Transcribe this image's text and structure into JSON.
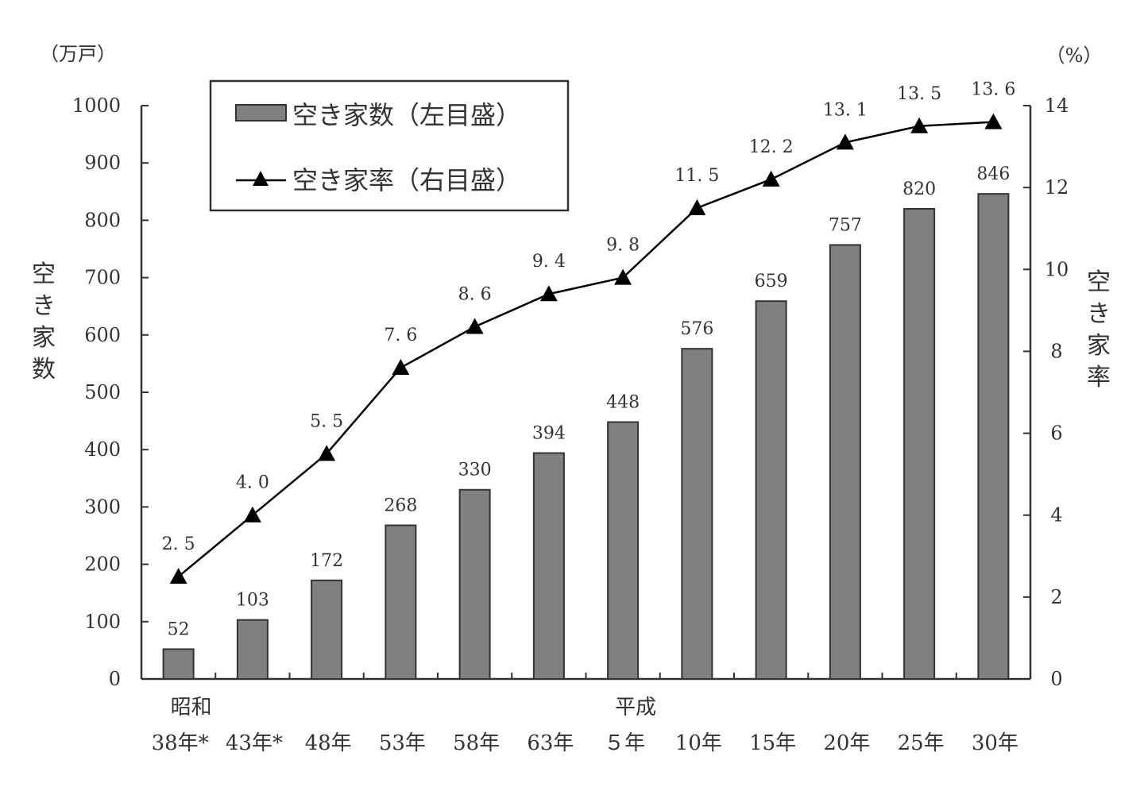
{
  "chart_data": {
    "type": "bar",
    "categories": [
      "38年*",
      "43年*",
      "48年",
      "53年",
      "58年",
      "63年",
      "５年",
      "10年",
      "15年",
      "20年",
      "25年",
      "30年"
    ],
    "era_labels": [
      {
        "text": "昭和",
        "category_index": 0
      },
      {
        "text": "平成",
        "category_index": 6
      }
    ],
    "series": [
      {
        "name": "空き家数（左目盛）",
        "type": "bar",
        "axis": "left",
        "color": "#808080",
        "values": [
          52,
          103,
          172,
          268,
          330,
          394,
          448,
          576,
          659,
          757,
          820,
          846
        ],
        "labels": [
          "52",
          "103",
          "172",
          "268",
          "330",
          "394",
          "448",
          "576",
          "659",
          "757",
          "820",
          "846"
        ]
      },
      {
        "name": "空き家率（右目盛）",
        "type": "line",
        "marker": "triangle",
        "axis": "right",
        "color": "#000000",
        "values": [
          2.5,
          4.0,
          5.5,
          7.6,
          8.6,
          9.4,
          9.8,
          11.5,
          12.2,
          13.1,
          13.5,
          13.6
        ],
        "labels": [
          "2. 5",
          "4. 0",
          "5. 5",
          "7. 6",
          "8. 6",
          "9. 4",
          "9. 8",
          "11. 5",
          "12. 2",
          "13. 1",
          "13. 5",
          "13. 6"
        ]
      }
    ],
    "left_axis": {
      "unit": "（万戸）",
      "label": "空き家数",
      "range": [
        0,
        1000
      ],
      "ticks": [
        0,
        100,
        200,
        300,
        400,
        500,
        600,
        700,
        800,
        900,
        1000
      ]
    },
    "right_axis": {
      "unit": "（%）",
      "label": "空き家率",
      "range": [
        0,
        14
      ],
      "ticks": [
        0,
        2,
        4,
        6,
        8,
        10,
        12,
        14
      ]
    },
    "legend": {
      "position": "top-left",
      "entries": [
        "空き家数（左目盛）",
        "空き家率（右目盛）"
      ]
    },
    "grid": false
  }
}
